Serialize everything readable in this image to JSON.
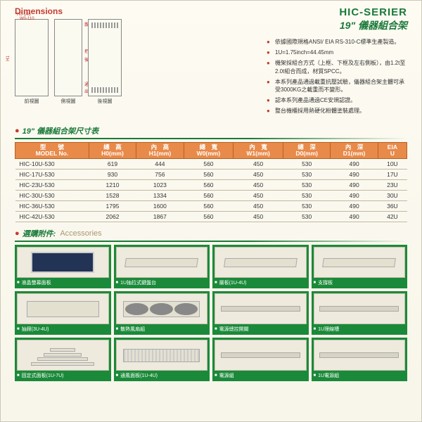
{
  "header": {
    "series": "HIC-SERIER",
    "subtitle_num": "19\"",
    "subtitle_zh": "儀器組合架",
    "dimensions_label": "Dimensions",
    "views": {
      "front": "前視圖",
      "side": "側視圖",
      "back": "後視圖"
    },
    "dim_notes": [
      "散熱風扇組",
      "H0-146",
      "W0-110",
      "H1",
      "把門鈕",
      "後活動門",
      "通風濾網",
      "出線孔"
    ]
  },
  "bullets": [
    "依據國際規格ANSI/ EIA RS-310-C標準生產製造。",
    "1U=1.75inch=44.45mm",
    "機架採組合方式（上框、下框及左右側板），由1.2t至2.0t組合而成，材質SPCC。",
    "本系列產品通過載重抗壓試驗，儀器組合架主體可承受3000KG之載重而不變形。",
    "認本系列產品通過CE安規認證。",
    "整台機櫃採用熱硬化粉體塗裝處理。"
  ],
  "spec_section": {
    "zh_prefix": "19\"",
    "zh": "儀器組合架尺寸表"
  },
  "table": {
    "columns": [
      {
        "zh": "型　　號",
        "en": "MODEL No."
      },
      {
        "zh": "總　高",
        "en": "H0(mm)"
      },
      {
        "zh": "內　高",
        "en": "H1(mm)"
      },
      {
        "zh": "總　寬",
        "en": "W0(mm)"
      },
      {
        "zh": "內　寬",
        "en": "W1(mm)"
      },
      {
        "zh": "總　深",
        "en": "D0(mm)"
      },
      {
        "zh": "內　深",
        "en": "D1(mm)"
      },
      {
        "zh": "EIA",
        "en": "U"
      }
    ],
    "rows": [
      [
        "HIC-10U-530",
        "619",
        "444",
        "560",
        "450",
        "530",
        "490",
        "10U"
      ],
      [
        "HIC-17U-530",
        "930",
        "756",
        "560",
        "450",
        "530",
        "490",
        "17U"
      ],
      [
        "HIC-23U-530",
        "1210",
        "1023",
        "560",
        "450",
        "530",
        "490",
        "23U"
      ],
      [
        "HIC-30U-530",
        "1528",
        "1334",
        "560",
        "450",
        "530",
        "490",
        "30U"
      ],
      [
        "HIC-36U-530",
        "1795",
        "1600",
        "560",
        "450",
        "530",
        "490",
        "36U"
      ],
      [
        "HIC-42U-530",
        "2062",
        "1867",
        "560",
        "450",
        "530",
        "490",
        "42U"
      ]
    ]
  },
  "acc_section": {
    "zh": "選購附件:",
    "en": "Accessories"
  },
  "accessories": [
    {
      "label": "液晶螢幕面板",
      "glyph": "monitor"
    },
    {
      "label": "1U抽拉式鍵盤台",
      "glyph": "shelf"
    },
    {
      "label": "層板(1U-4U)",
      "glyph": "shelf"
    },
    {
      "label": "支撐板",
      "glyph": "shelf"
    },
    {
      "label": "抽屜(3U-4U)",
      "glyph": "rackpc"
    },
    {
      "label": "散熱風扇組",
      "glyph": "fans"
    },
    {
      "label": "電源總控開關",
      "glyph": "strip"
    },
    {
      "label": "1U理線槽",
      "glyph": "strip"
    },
    {
      "label": "固定式面板(1U-7U)",
      "glyph": "steps"
    },
    {
      "label": "通風面板(1U-4U)",
      "glyph": "vent"
    },
    {
      "label": "電源組",
      "glyph": "strip"
    },
    {
      "label": "1U電源組",
      "glyph": "strip"
    }
  ],
  "colors": {
    "green": "#1a7a3a",
    "acc_green": "#1a8a3a",
    "orange": "#e88a4a",
    "red": "#c53a2e",
    "paper": "#f8f5ea"
  }
}
